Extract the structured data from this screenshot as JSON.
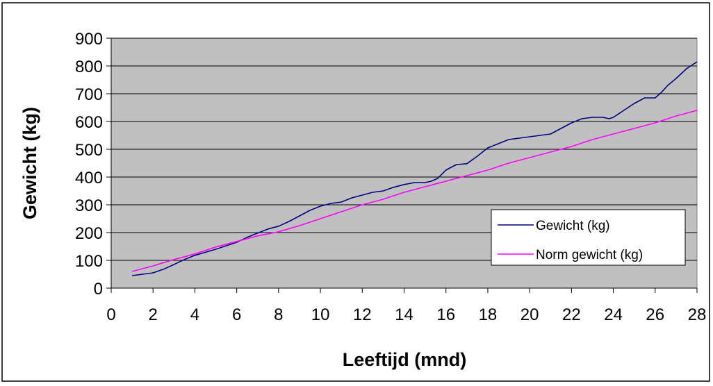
{
  "chart_data": {
    "type": "line",
    "xlabel": "Leeftijd (mnd)",
    "ylabel": "Gewicht (kg)",
    "xlim": [
      0,
      28
    ],
    "ylim": [
      0,
      900
    ],
    "xticks": [
      "0",
      "2",
      "4",
      "6",
      "8",
      "10",
      "12",
      "14",
      "16",
      "18",
      "20",
      "22",
      "24",
      "26",
      "28"
    ],
    "yticks": [
      "0",
      "100",
      "200",
      "300",
      "400",
      "500",
      "600",
      "700",
      "800",
      "900"
    ],
    "grid": true,
    "legend_position": "lower-right",
    "plot_background": "#c0c0c0",
    "series": [
      {
        "name": "Gewicht (kg)",
        "color": "#000080",
        "x": [
          1,
          2,
          2.5,
          3,
          3.5,
          4,
          5,
          6,
          6.5,
          7,
          7.5,
          8,
          8.5,
          9,
          9.5,
          10,
          10.5,
          11,
          11.5,
          12,
          12.5,
          13,
          13.5,
          14,
          14.5,
          15,
          15.3,
          15.6,
          16,
          16.5,
          17,
          17.5,
          18,
          18.5,
          19,
          19.5,
          20,
          20.5,
          21,
          21.5,
          22,
          22.5,
          23,
          23.5,
          23.8,
          24,
          24.5,
          25,
          25.5,
          26,
          26.3,
          26.6,
          27,
          27.5,
          28
        ],
        "y": [
          45,
          55,
          68,
          85,
          103,
          118,
          140,
          165,
          183,
          198,
          213,
          223,
          240,
          260,
          280,
          295,
          305,
          310,
          325,
          335,
          345,
          350,
          363,
          373,
          380,
          380,
          385,
          395,
          425,
          445,
          448,
          475,
          505,
          520,
          535,
          540,
          545,
          550,
          555,
          575,
          595,
          610,
          615,
          615,
          610,
          615,
          640,
          665,
          685,
          685,
          705,
          730,
          755,
          790,
          815
        ]
      },
      {
        "name": "Norm gewicht (kg)",
        "color": "#ff00ff",
        "x": [
          1,
          2,
          3,
          4,
          5,
          6,
          7,
          8,
          9,
          10,
          11,
          12,
          13,
          14,
          15,
          16,
          17,
          18,
          19,
          20,
          21,
          22,
          23,
          24,
          25,
          26,
          27,
          28
        ],
        "y": [
          60,
          80,
          103,
          123,
          148,
          168,
          188,
          203,
          225,
          250,
          275,
          300,
          320,
          345,
          365,
          385,
          405,
          425,
          450,
          470,
          490,
          510,
          535,
          555,
          575,
          595,
          620,
          640
        ]
      }
    ]
  }
}
